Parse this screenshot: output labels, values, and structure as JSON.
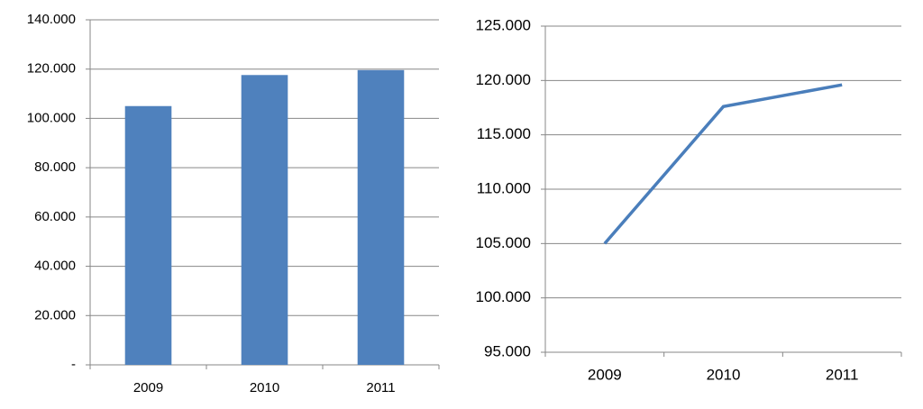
{
  "chart_data": [
    {
      "type": "bar",
      "categories": [
        "2009",
        "2010",
        "2011"
      ],
      "values": [
        105000,
        117600,
        119600
      ],
      "color": "#4f81bd",
      "ylim": [
        0,
        140000
      ],
      "yticks": [
        {
          "value": 0,
          "label": "-"
        },
        {
          "value": 20000,
          "label": "20.000"
        },
        {
          "value": 40000,
          "label": "40.000"
        },
        {
          "value": 60000,
          "label": "60.000"
        },
        {
          "value": 80000,
          "label": "80.000"
        },
        {
          "value": 100000,
          "label": "100.000"
        },
        {
          "value": 120000,
          "label": "120.000"
        },
        {
          "value": 140000,
          "label": "140.000"
        }
      ],
      "grid": true
    },
    {
      "type": "line",
      "categories": [
        "2009",
        "2010",
        "2011"
      ],
      "values": [
        105000,
        117600,
        119600
      ],
      "color": "#4a7ebb",
      "ylim": [
        95000,
        125000
      ],
      "yticks": [
        {
          "value": 95000,
          "label": "95.000"
        },
        {
          "value": 100000,
          "label": "100.000"
        },
        {
          "value": 105000,
          "label": "105.000"
        },
        {
          "value": 110000,
          "label": "110.000"
        },
        {
          "value": 115000,
          "label": "115.000"
        },
        {
          "value": 120000,
          "label": "120.000"
        },
        {
          "value": 125000,
          "label": "125.000"
        }
      ],
      "grid": true
    }
  ]
}
